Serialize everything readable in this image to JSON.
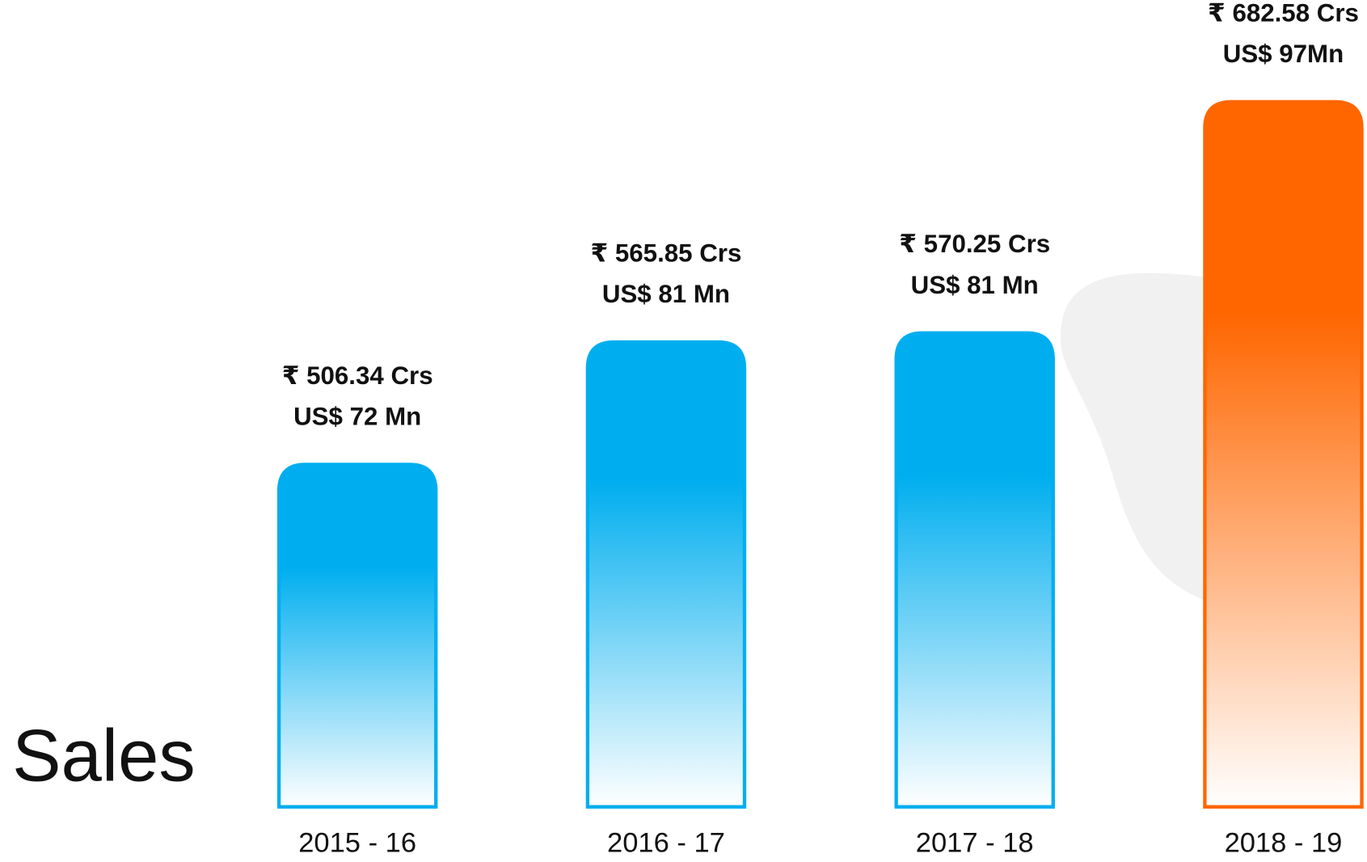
{
  "chart_data": {
    "type": "bar",
    "title": "Sales",
    "categories": [
      "2015 - 16",
      "2016 - 17",
      "2017 - 18",
      "2018 - 19"
    ],
    "values": [
      506.34,
      565.85,
      570.25,
      682.58
    ],
    "value_labels": [
      "₹ 506.34 Crs",
      "₹ 565.85 Crs",
      "₹ 570.25 Crs",
      "₹ 682.58 Crs"
    ],
    "usd_labels": [
      "US$ 72 Mn",
      "US$ 81 Mn",
      "US$ 81 Mn",
      "US$ 97Mn"
    ],
    "colors": [
      "#00aeef",
      "#00aeef",
      "#00aeef",
      "#ff6600"
    ],
    "ylim": [
      340,
      690
    ]
  }
}
